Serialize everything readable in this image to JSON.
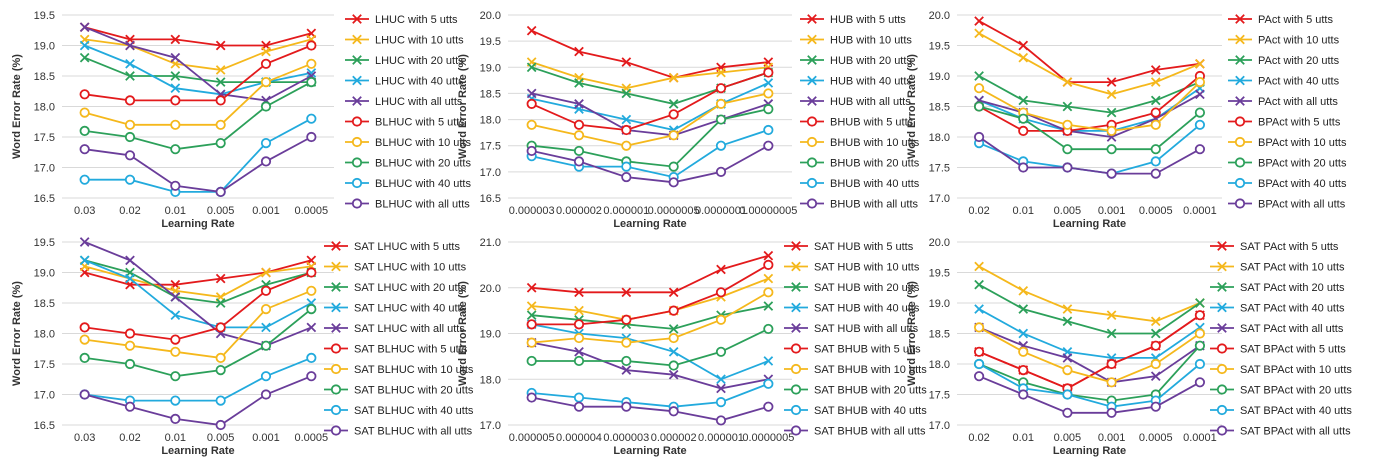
{
  "palette": {
    "grid": "#d9d9d9",
    "highlight_tick": "#e31a1c",
    "series_colors": [
      "#e31a1c",
      "#f5b81c",
      "#2ca05a",
      "#22aadd",
      "#6a3d9a"
    ],
    "markers": [
      "cross",
      "cross",
      "cross",
      "cross",
      "cross",
      "circle",
      "circle",
      "circle",
      "circle",
      "circle"
    ]
  },
  "chart_data": [
    {
      "type": "line",
      "xlabel": "Learning Rate",
      "ylabel": "Word Error Rate (%)",
      "categories": [
        "0.03",
        "0.02",
        "0.01",
        "0.005",
        "0.001",
        "0.0005"
      ],
      "highlight_category": "0.01",
      "ylim": [
        16.5,
        19.5
      ],
      "yticks": [
        "16.5",
        "17.0",
        "17.5",
        "18.0",
        "18.5",
        "19.0",
        "19.5"
      ],
      "grid": true,
      "legend": "right",
      "series": [
        {
          "name": "LHUC with 5 utts",
          "values": [
            19.3,
            19.1,
            19.1,
            19.0,
            19.0,
            19.2
          ]
        },
        {
          "name": "LHUC with 10 utts",
          "values": [
            19.1,
            19.0,
            18.7,
            18.6,
            18.9,
            19.1
          ]
        },
        {
          "name": "LHUC with 20 utts",
          "values": [
            18.8,
            18.5,
            18.5,
            18.4,
            18.4,
            18.4
          ]
        },
        {
          "name": "LHUC with 40 utts",
          "values": [
            19.0,
            18.7,
            18.3,
            18.2,
            18.4,
            18.55
          ]
        },
        {
          "name": "LHUC with all utts",
          "values": [
            19.3,
            19.0,
            18.8,
            18.2,
            18.1,
            18.5
          ]
        },
        {
          "name": "BLHUC with 5 utts",
          "values": [
            18.2,
            18.1,
            18.1,
            18.1,
            18.7,
            19.0
          ]
        },
        {
          "name": "BLHUC with 10 utts",
          "values": [
            17.9,
            17.7,
            17.7,
            17.7,
            18.4,
            18.7
          ]
        },
        {
          "name": "BLHUC with 20 utts",
          "values": [
            17.6,
            17.5,
            17.3,
            17.4,
            18.0,
            18.4
          ]
        },
        {
          "name": "BLHUC with 40 utts",
          "values": [
            16.8,
            16.8,
            16.6,
            16.6,
            17.4,
            17.8
          ]
        },
        {
          "name": "BLHUC with all utts",
          "values": [
            17.3,
            17.2,
            16.7,
            16.6,
            17.1,
            17.5
          ]
        }
      ]
    },
    {
      "type": "line",
      "xlabel": "Learning Rate",
      "ylabel": "Word Error Rate (%)",
      "categories": [
        "0.000003",
        "0.000002",
        "0.000001",
        "0.0000005",
        "0.0000001",
        "0.00000005"
      ],
      "highlight_category": "0.000001",
      "ylim": [
        16.5,
        20.0
      ],
      "yticks": [
        "16.5",
        "17.0",
        "17.5",
        "18.0",
        "18.5",
        "19.0",
        "19.5",
        "20.0"
      ],
      "grid": true,
      "legend": "right",
      "series": [
        {
          "name": "HUB with 5 utts",
          "values": [
            19.7,
            19.3,
            19.1,
            18.8,
            19.0,
            19.1
          ]
        },
        {
          "name": "HUB with 10 utts",
          "values": [
            19.1,
            18.8,
            18.6,
            18.8,
            18.9,
            19.0
          ]
        },
        {
          "name": "HUB with 20 utts",
          "values": [
            19.0,
            18.7,
            18.5,
            18.3,
            18.6,
            18.9
          ]
        },
        {
          "name": "HUB with 40 utts",
          "values": [
            18.4,
            18.2,
            18.0,
            17.8,
            18.3,
            18.7
          ]
        },
        {
          "name": "HUB with all utts",
          "values": [
            18.5,
            18.3,
            17.8,
            17.7,
            18.0,
            18.3
          ]
        },
        {
          "name": "BHUB with 5 utts",
          "values": [
            18.3,
            17.9,
            17.8,
            18.1,
            18.6,
            18.9
          ]
        },
        {
          "name": "BHUB with 10 utts",
          "values": [
            17.9,
            17.7,
            17.5,
            17.7,
            18.3,
            18.5
          ]
        },
        {
          "name": "BHUB with 20 utts",
          "values": [
            17.5,
            17.4,
            17.2,
            17.1,
            18.0,
            18.2
          ]
        },
        {
          "name": "BHUB with 40 utts",
          "values": [
            17.3,
            17.1,
            17.1,
            16.9,
            17.5,
            17.8
          ]
        },
        {
          "name": "BHUB with all utts",
          "values": [
            17.4,
            17.2,
            16.9,
            16.8,
            17.0,
            17.5
          ]
        }
      ]
    },
    {
      "type": "line",
      "xlabel": "Learning Rate",
      "ylabel": "Word Error Rate (%)",
      "categories": [
        "0.02",
        "0.01",
        "0.005",
        "0.001",
        "0.0005",
        "0.0001"
      ],
      "highlight_category": "0.01",
      "ylim": [
        17.0,
        20.0
      ],
      "yticks": [
        "17.0",
        "17.5",
        "18.0",
        "18.5",
        "19.0",
        "19.5",
        "20.0"
      ],
      "grid": true,
      "legend": "right",
      "series": [
        {
          "name": "PAct with 5 utts",
          "values": [
            19.9,
            19.5,
            18.9,
            18.9,
            19.1,
            19.2
          ]
        },
        {
          "name": "PAct with 10 utts",
          "values": [
            19.7,
            19.3,
            18.9,
            18.7,
            18.9,
            19.2
          ]
        },
        {
          "name": "PAct with 20 utts",
          "values": [
            19.0,
            18.6,
            18.5,
            18.4,
            18.6,
            18.9
          ]
        },
        {
          "name": "PAct with 40 utts",
          "values": [
            18.6,
            18.3,
            18.1,
            18.1,
            18.3,
            18.8
          ]
        },
        {
          "name": "PAct with all utts",
          "values": [
            18.6,
            18.4,
            18.1,
            18.0,
            18.3,
            18.7
          ]
        },
        {
          "name": "BPAct with 5 utts",
          "values": [
            18.5,
            18.1,
            18.1,
            18.2,
            18.4,
            19.0
          ]
        },
        {
          "name": "BPAct with 10 utts",
          "values": [
            18.8,
            18.4,
            18.2,
            18.1,
            18.2,
            18.9
          ]
        },
        {
          "name": "BPAct with 20 utts",
          "values": [
            18.5,
            18.3,
            17.8,
            17.8,
            17.8,
            18.4
          ]
        },
        {
          "name": "BPAct with 40 utts",
          "values": [
            17.9,
            17.6,
            17.5,
            17.4,
            17.6,
            18.2
          ]
        },
        {
          "name": "BPAct with all utts",
          "values": [
            18.0,
            17.5,
            17.5,
            17.4,
            17.4,
            17.8
          ]
        }
      ]
    },
    {
      "type": "line",
      "xlabel": "Learning Rate",
      "ylabel": "Word Error Rate (%)",
      "categories": [
        "0.03",
        "0.02",
        "0.01",
        "0.005",
        "0.001",
        "0.0005"
      ],
      "highlight_category": "0.01",
      "ylim": [
        16.5,
        19.5
      ],
      "yticks": [
        "16.5",
        "17.0",
        "17.5",
        "18.0",
        "18.5",
        "19.0",
        "19.5"
      ],
      "grid": true,
      "legend": "right",
      "series": [
        {
          "name": "SAT LHUC with 5 utts",
          "values": [
            19.0,
            18.8,
            18.8,
            18.9,
            19.0,
            19.2
          ]
        },
        {
          "name": "SAT LHUC with 10 utts",
          "values": [
            19.1,
            18.9,
            18.7,
            18.6,
            19.0,
            19.1
          ]
        },
        {
          "name": "SAT LHUC with 20 utts",
          "values": [
            19.2,
            19.0,
            18.6,
            18.5,
            18.8,
            19.0
          ]
        },
        {
          "name": "SAT LHUC with 40 utts",
          "values": [
            19.2,
            18.9,
            18.3,
            18.1,
            18.1,
            18.5
          ]
        },
        {
          "name": "SAT LHUC with all utts",
          "values": [
            19.5,
            19.2,
            18.6,
            18.0,
            17.8,
            18.1
          ]
        },
        {
          "name": "SAT BLHUC with 5 utts",
          "values": [
            18.1,
            18.0,
            17.9,
            18.1,
            18.7,
            19.0
          ]
        },
        {
          "name": "SAT BLHUC with 10 utts",
          "values": [
            17.9,
            17.8,
            17.7,
            17.6,
            18.4,
            18.7
          ]
        },
        {
          "name": "SAT BLHUC with 20 utts",
          "values": [
            17.6,
            17.5,
            17.3,
            17.4,
            17.8,
            18.4
          ]
        },
        {
          "name": "SAT BLHUC with 40 utts",
          "values": [
            17.0,
            16.9,
            16.9,
            16.9,
            17.3,
            17.6
          ]
        },
        {
          "name": "SAT BLHUC with all utts",
          "values": [
            17.0,
            16.8,
            16.6,
            16.5,
            17.0,
            17.3
          ]
        }
      ]
    },
    {
      "type": "line",
      "xlabel": "Learning Rate",
      "ylabel": "Word Error Rate (%)",
      "categories": [
        "0.000005",
        "0.000004",
        "0.000003",
        "0.000002",
        "0.000001",
        "0.0000005"
      ],
      "highlight_category": "0.000001",
      "ylim": [
        17.0,
        21.0
      ],
      "yticks": [
        "17.0",
        "18.0",
        "19.0",
        "20.0",
        "21.0"
      ],
      "grid": true,
      "legend": "right",
      "series": [
        {
          "name": "SAT HUB with 5 utts",
          "values": [
            20.0,
            19.9,
            19.9,
            19.9,
            20.4,
            20.7
          ]
        },
        {
          "name": "SAT HUB with 10 utts",
          "values": [
            19.6,
            19.5,
            19.3,
            19.5,
            19.8,
            20.2
          ]
        },
        {
          "name": "SAT HUB with 20 utts",
          "values": [
            19.4,
            19.3,
            19.2,
            19.1,
            19.4,
            19.6
          ]
        },
        {
          "name": "SAT HUB with 40 utts",
          "values": [
            19.2,
            19.0,
            18.9,
            18.6,
            18.0,
            18.4
          ]
        },
        {
          "name": "SAT HUB with all utts",
          "values": [
            18.8,
            18.6,
            18.2,
            18.1,
            17.8,
            18.0
          ]
        },
        {
          "name": "SAT BHUB with 5 utts",
          "values": [
            19.2,
            19.2,
            19.3,
            19.5,
            19.9,
            20.5
          ]
        },
        {
          "name": "SAT BHUB with 10 utts",
          "values": [
            18.8,
            18.9,
            18.8,
            18.9,
            19.3,
            19.9
          ]
        },
        {
          "name": "SAT BHUB with 20 utts",
          "values": [
            18.4,
            18.4,
            18.4,
            18.3,
            18.6,
            19.1
          ]
        },
        {
          "name": "SAT BHUB with 40 utts",
          "values": [
            17.7,
            17.6,
            17.5,
            17.4,
            17.5,
            17.9
          ]
        },
        {
          "name": "SAT BHUB with all utts",
          "values": [
            17.6,
            17.4,
            17.4,
            17.3,
            17.1,
            17.4
          ]
        }
      ]
    },
    {
      "type": "line",
      "xlabel": "Learning Rate",
      "ylabel": "Word Error Rate (%)",
      "categories": [
        "0.02",
        "0.01",
        "0.005",
        "0.001",
        "0.0005",
        "0.0001"
      ],
      "highlight_category": "0.01",
      "ylim": [
        17.0,
        20.0
      ],
      "yticks": [
        "17.0",
        "17.5",
        "18.0",
        "18.5",
        "19.0",
        "19.5",
        "20.0"
      ],
      "grid": true,
      "legend": "right",
      "series": [
        {
          "name": "SAT PAct with 5 utts",
          "values": [
            18.2,
            17.9,
            17.6,
            18.0,
            18.3,
            18.8
          ]
        },
        {
          "name": "SAT PAct with 10 utts",
          "values": [
            19.6,
            19.2,
            18.9,
            18.8,
            18.7,
            19.0
          ]
        },
        {
          "name": "SAT PAct with 20 utts",
          "values": [
            19.3,
            18.9,
            18.7,
            18.5,
            18.5,
            19.0
          ]
        },
        {
          "name": "SAT PAct with 40 utts",
          "values": [
            18.9,
            18.5,
            18.2,
            18.1,
            18.1,
            18.6
          ]
        },
        {
          "name": "SAT PAct with all utts",
          "values": [
            18.6,
            18.3,
            18.1,
            17.7,
            17.8,
            18.3
          ]
        },
        {
          "name": "SAT BPAct with 5 utts",
          "values": [
            18.2,
            17.9,
            17.6,
            18.0,
            18.3,
            18.8
          ]
        },
        {
          "name": "SAT BPAct with 10 utts",
          "values": [
            18.6,
            18.2,
            17.9,
            17.7,
            18.0,
            18.5
          ]
        },
        {
          "name": "SAT BPAct with 20 utts",
          "values": [
            18.0,
            17.7,
            17.5,
            17.4,
            17.5,
            18.3
          ]
        },
        {
          "name": "SAT BPAct with 40 utts",
          "values": [
            18.0,
            17.6,
            17.5,
            17.3,
            17.4,
            18.0
          ]
        },
        {
          "name": "SAT BPAct with all utts",
          "values": [
            17.8,
            17.5,
            17.2,
            17.2,
            17.3,
            17.7
          ]
        }
      ]
    }
  ]
}
